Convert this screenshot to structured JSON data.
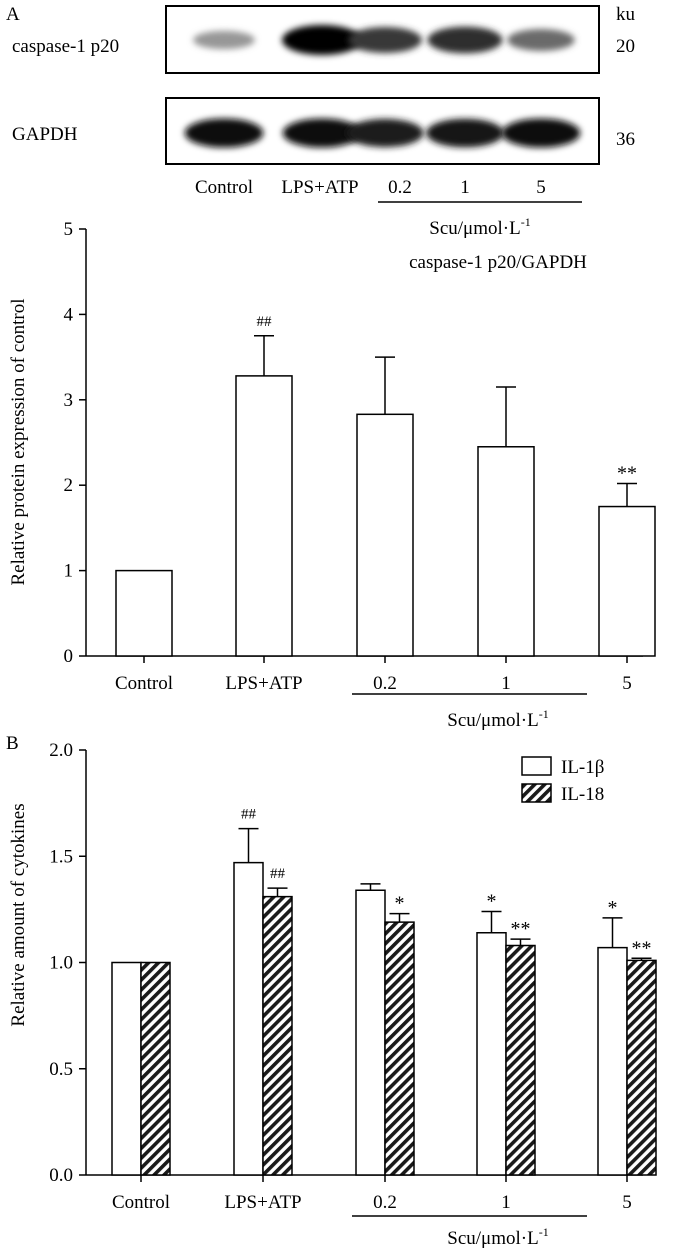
{
  "panels": {
    "a_label": "A",
    "b_label": "B"
  },
  "blot": {
    "unit_label": "ku",
    "lanes": [
      "Control",
      "LPS+ATP",
      "0.2",
      "1",
      "5"
    ],
    "treatment_label": "Scu/μmol·L",
    "treatment_superscript": "-1",
    "rows": [
      {
        "name": "caspase-1 p20",
        "kda": "20",
        "intensity": [
          0.35,
          1.0,
          0.78,
          0.82,
          0.55
        ]
      },
      {
        "name": "GAPDH",
        "kda": "36",
        "intensity": [
          0.95,
          0.95,
          0.9,
          0.92,
          0.95
        ]
      }
    ]
  },
  "chart_data": [
    {
      "type": "bar",
      "title": "caspase-1 p20/GAPDH",
      "categories": [
        "Control",
        "LPS+ATP",
        "0.2",
        "1",
        "5"
      ],
      "group_label": "Scu/μmol·L",
      "group_label_superscript": "-1",
      "ylabel": "Relative protein expression of control",
      "ylim": [
        0,
        5
      ],
      "yticks": [
        0,
        1,
        2,
        3,
        4,
        5
      ],
      "ytick_labels": [
        "0",
        "1",
        "2",
        "3",
        "4",
        "5"
      ],
      "series": [
        {
          "name": "caspase-1 p20/GAPDH",
          "pattern": "open",
          "values": [
            1.0,
            3.28,
            2.83,
            2.45,
            1.75
          ],
          "errors": [
            0,
            0.47,
            0.67,
            0.7,
            0.27
          ],
          "annotations": [
            "",
            "##",
            "",
            "",
            "**"
          ]
        }
      ]
    },
    {
      "type": "bar",
      "categories": [
        "Control",
        "LPS+ATP",
        "0.2",
        "1",
        "5"
      ],
      "group_label": "Scu/μmol·L",
      "group_label_superscript": "-1",
      "ylabel": "Relative amount of cytokines",
      "ylim": [
        0,
        2.0
      ],
      "yticks": [
        0,
        0.5,
        1.0,
        1.5,
        2.0
      ],
      "ytick_labels": [
        "0.0",
        "0.5",
        "1.0",
        "1.5",
        "2.0"
      ],
      "legend_position": "top-right",
      "series": [
        {
          "name": "IL-1β",
          "pattern": "open",
          "values": [
            1.0,
            1.47,
            1.34,
            1.14,
            1.07
          ],
          "errors": [
            0,
            0.16,
            0.03,
            0.1,
            0.14
          ],
          "annotations": [
            "",
            "##",
            "",
            "*",
            "*"
          ]
        },
        {
          "name": "IL-18",
          "pattern": "hatched",
          "values": [
            1.0,
            1.31,
            1.19,
            1.08,
            1.01
          ],
          "errors": [
            0,
            0.04,
            0.04,
            0.03,
            0.01
          ],
          "annotations": [
            "",
            "##",
            "*",
            "**",
            "**"
          ]
        }
      ]
    }
  ]
}
